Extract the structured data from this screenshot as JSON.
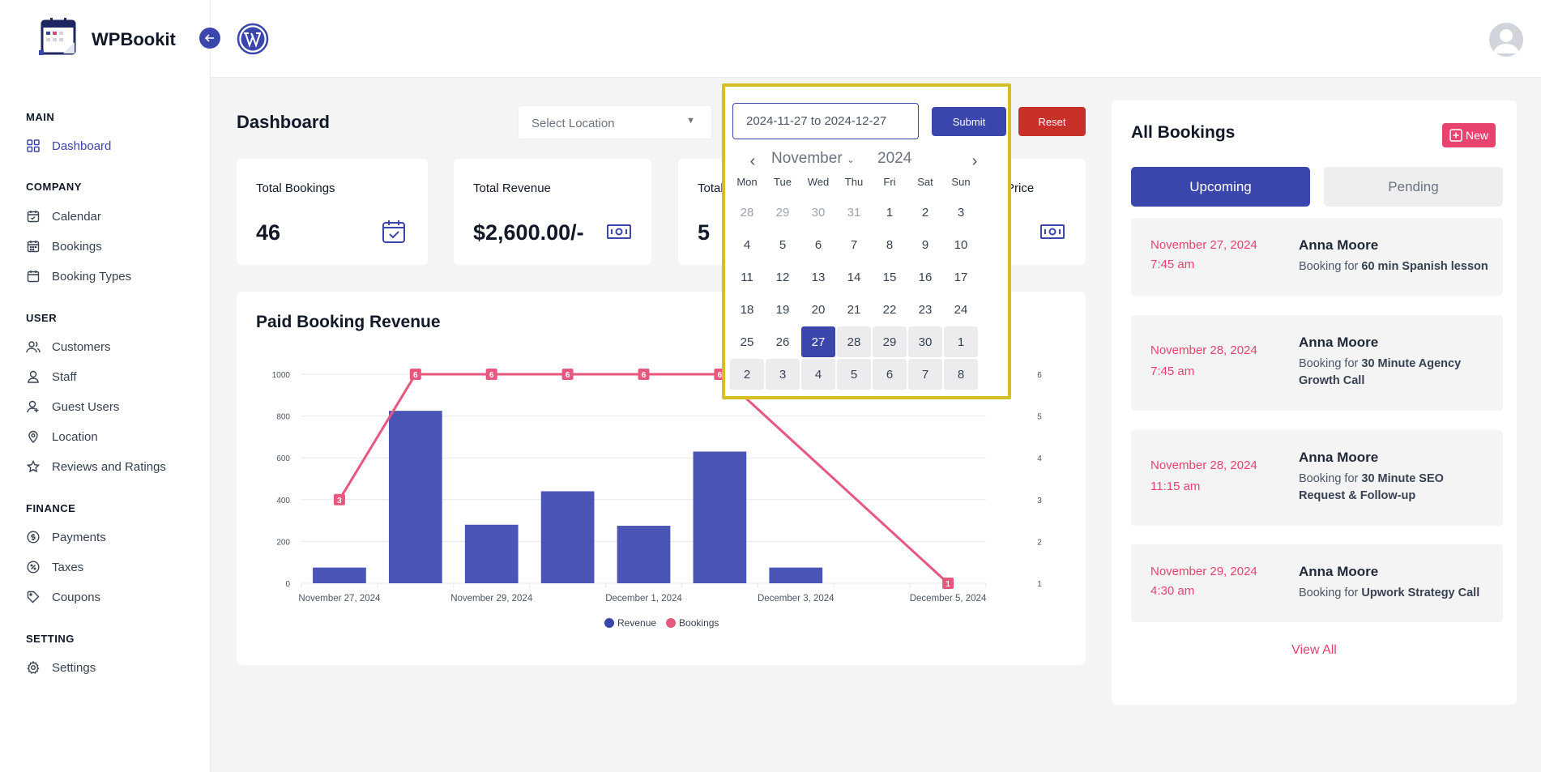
{
  "app": {
    "name": "WPBookit"
  },
  "sidebar": {
    "sections": [
      {
        "title": "MAIN",
        "items": [
          {
            "label": "Dashboard",
            "icon": "grid-icon",
            "active": true
          }
        ]
      },
      {
        "title": "COMPANY",
        "items": [
          {
            "label": "Calendar",
            "icon": "calendar-icon"
          },
          {
            "label": "Bookings",
            "icon": "bookings-icon"
          },
          {
            "label": "Booking Types",
            "icon": "booking-types-icon"
          }
        ]
      },
      {
        "title": "USER",
        "items": [
          {
            "label": "Customers",
            "icon": "users-icon"
          },
          {
            "label": "Staff",
            "icon": "user-icon"
          },
          {
            "label": "Guest Users",
            "icon": "guest-icon"
          },
          {
            "label": "Location",
            "icon": "location-pin-icon"
          },
          {
            "label": "Reviews and Ratings",
            "icon": "star-icon"
          }
        ]
      },
      {
        "title": "FINANCE",
        "items": [
          {
            "label": "Payments",
            "icon": "dollar-icon"
          },
          {
            "label": "Taxes",
            "icon": "percent-icon"
          },
          {
            "label": "Coupons",
            "icon": "tag-icon"
          }
        ]
      },
      {
        "title": "SETTING",
        "items": [
          {
            "label": "Settings",
            "icon": "gear-icon"
          }
        ]
      }
    ]
  },
  "header": {
    "title": "Dashboard",
    "location_placeholder": "Select Location",
    "date_range": "2024-11-27 to 2024-12-27",
    "submit_label": "Submit",
    "reset_label": "Reset"
  },
  "stats": [
    {
      "label": "Total Bookings",
      "value": "46",
      "icon": "calendar-check-icon"
    },
    {
      "label": "Total Revenue",
      "value": "$2,600.00/-",
      "icon": "money-icon"
    },
    {
      "label": "Total C",
      "value": "5"
    },
    {
      "label": "Price",
      "value": "/-",
      "icon": "money-icon"
    }
  ],
  "calendar": {
    "month": "November",
    "year": "2024",
    "weekdays": [
      "Mon",
      "Tue",
      "Wed",
      "Thu",
      "Fri",
      "Sat",
      "Sun"
    ],
    "weeks": [
      [
        "28",
        "29",
        "30",
        "31",
        "1",
        "2",
        "3"
      ],
      [
        "4",
        "5",
        "6",
        "7",
        "8",
        "9",
        "10"
      ],
      [
        "11",
        "12",
        "13",
        "14",
        "15",
        "16",
        "17"
      ],
      [
        "18",
        "19",
        "20",
        "21",
        "22",
        "23",
        "24"
      ],
      [
        "25",
        "26",
        "27",
        "28",
        "29",
        "30",
        "1"
      ],
      [
        "2",
        "3",
        "4",
        "5",
        "6",
        "7",
        "8"
      ]
    ],
    "selected": "27"
  },
  "chart_data": {
    "type": "bar",
    "title": "Paid Booking Revenue",
    "x": [
      "November 27, 2024",
      "November 28, 2024",
      "November 29, 2024",
      "November 30, 2024",
      "December 1, 2024",
      "December 2, 2024",
      "December 3, 2024",
      "December 4, 2024",
      "December 5, 2024"
    ],
    "tick_labels": [
      "November 27, 2024",
      "November 29, 2024",
      "December 1, 2024",
      "December 3, 2024",
      "December 5, 2024"
    ],
    "series": [
      {
        "name": "Revenue",
        "type": "bar",
        "color": "#4a55b5",
        "axis": "left",
        "values": [
          75,
          825,
          280,
          440,
          275,
          630,
          75,
          null,
          null
        ]
      },
      {
        "name": "Bookings",
        "type": "line",
        "color": "#e8577d",
        "axis": "right",
        "values": [
          3,
          6,
          6,
          6,
          6,
          6,
          null,
          null,
          1
        ]
      }
    ],
    "y_left": {
      "range": [
        0,
        1000
      ],
      "ticks": [
        "0",
        "200",
        "400",
        "600",
        "800",
        "1000"
      ]
    },
    "y_right": {
      "range": [
        1,
        6
      ],
      "ticks": [
        "1",
        "2",
        "3",
        "4",
        "5",
        "6"
      ]
    },
    "legend": "bottom"
  },
  "bookings": {
    "title": "All Bookings",
    "new_label": "New",
    "tabs": {
      "upcoming": "Upcoming",
      "pending": "Pending"
    },
    "items": [
      {
        "date": "November 27, 2024",
        "time": "7:45 am",
        "name": "Anna Moore",
        "prefix": "Booking for",
        "service": "60 min Spanish lesson"
      },
      {
        "date": "November 28, 2024",
        "time": "7:45 am",
        "name": "Anna Moore",
        "prefix": "Booking for",
        "service": "30 Minute Agency Growth Call"
      },
      {
        "date": "November 28, 2024",
        "time": "11:15 am",
        "name": "Anna Moore",
        "prefix": "Booking for",
        "service": "30 Minute SEO Request & Follow-up"
      },
      {
        "date": "November 29, 2024",
        "time": "4:30 am",
        "name": "Anna Moore",
        "prefix": "Booking for",
        "service": "Upwork Strategy Call"
      }
    ],
    "view_all": "View All"
  }
}
